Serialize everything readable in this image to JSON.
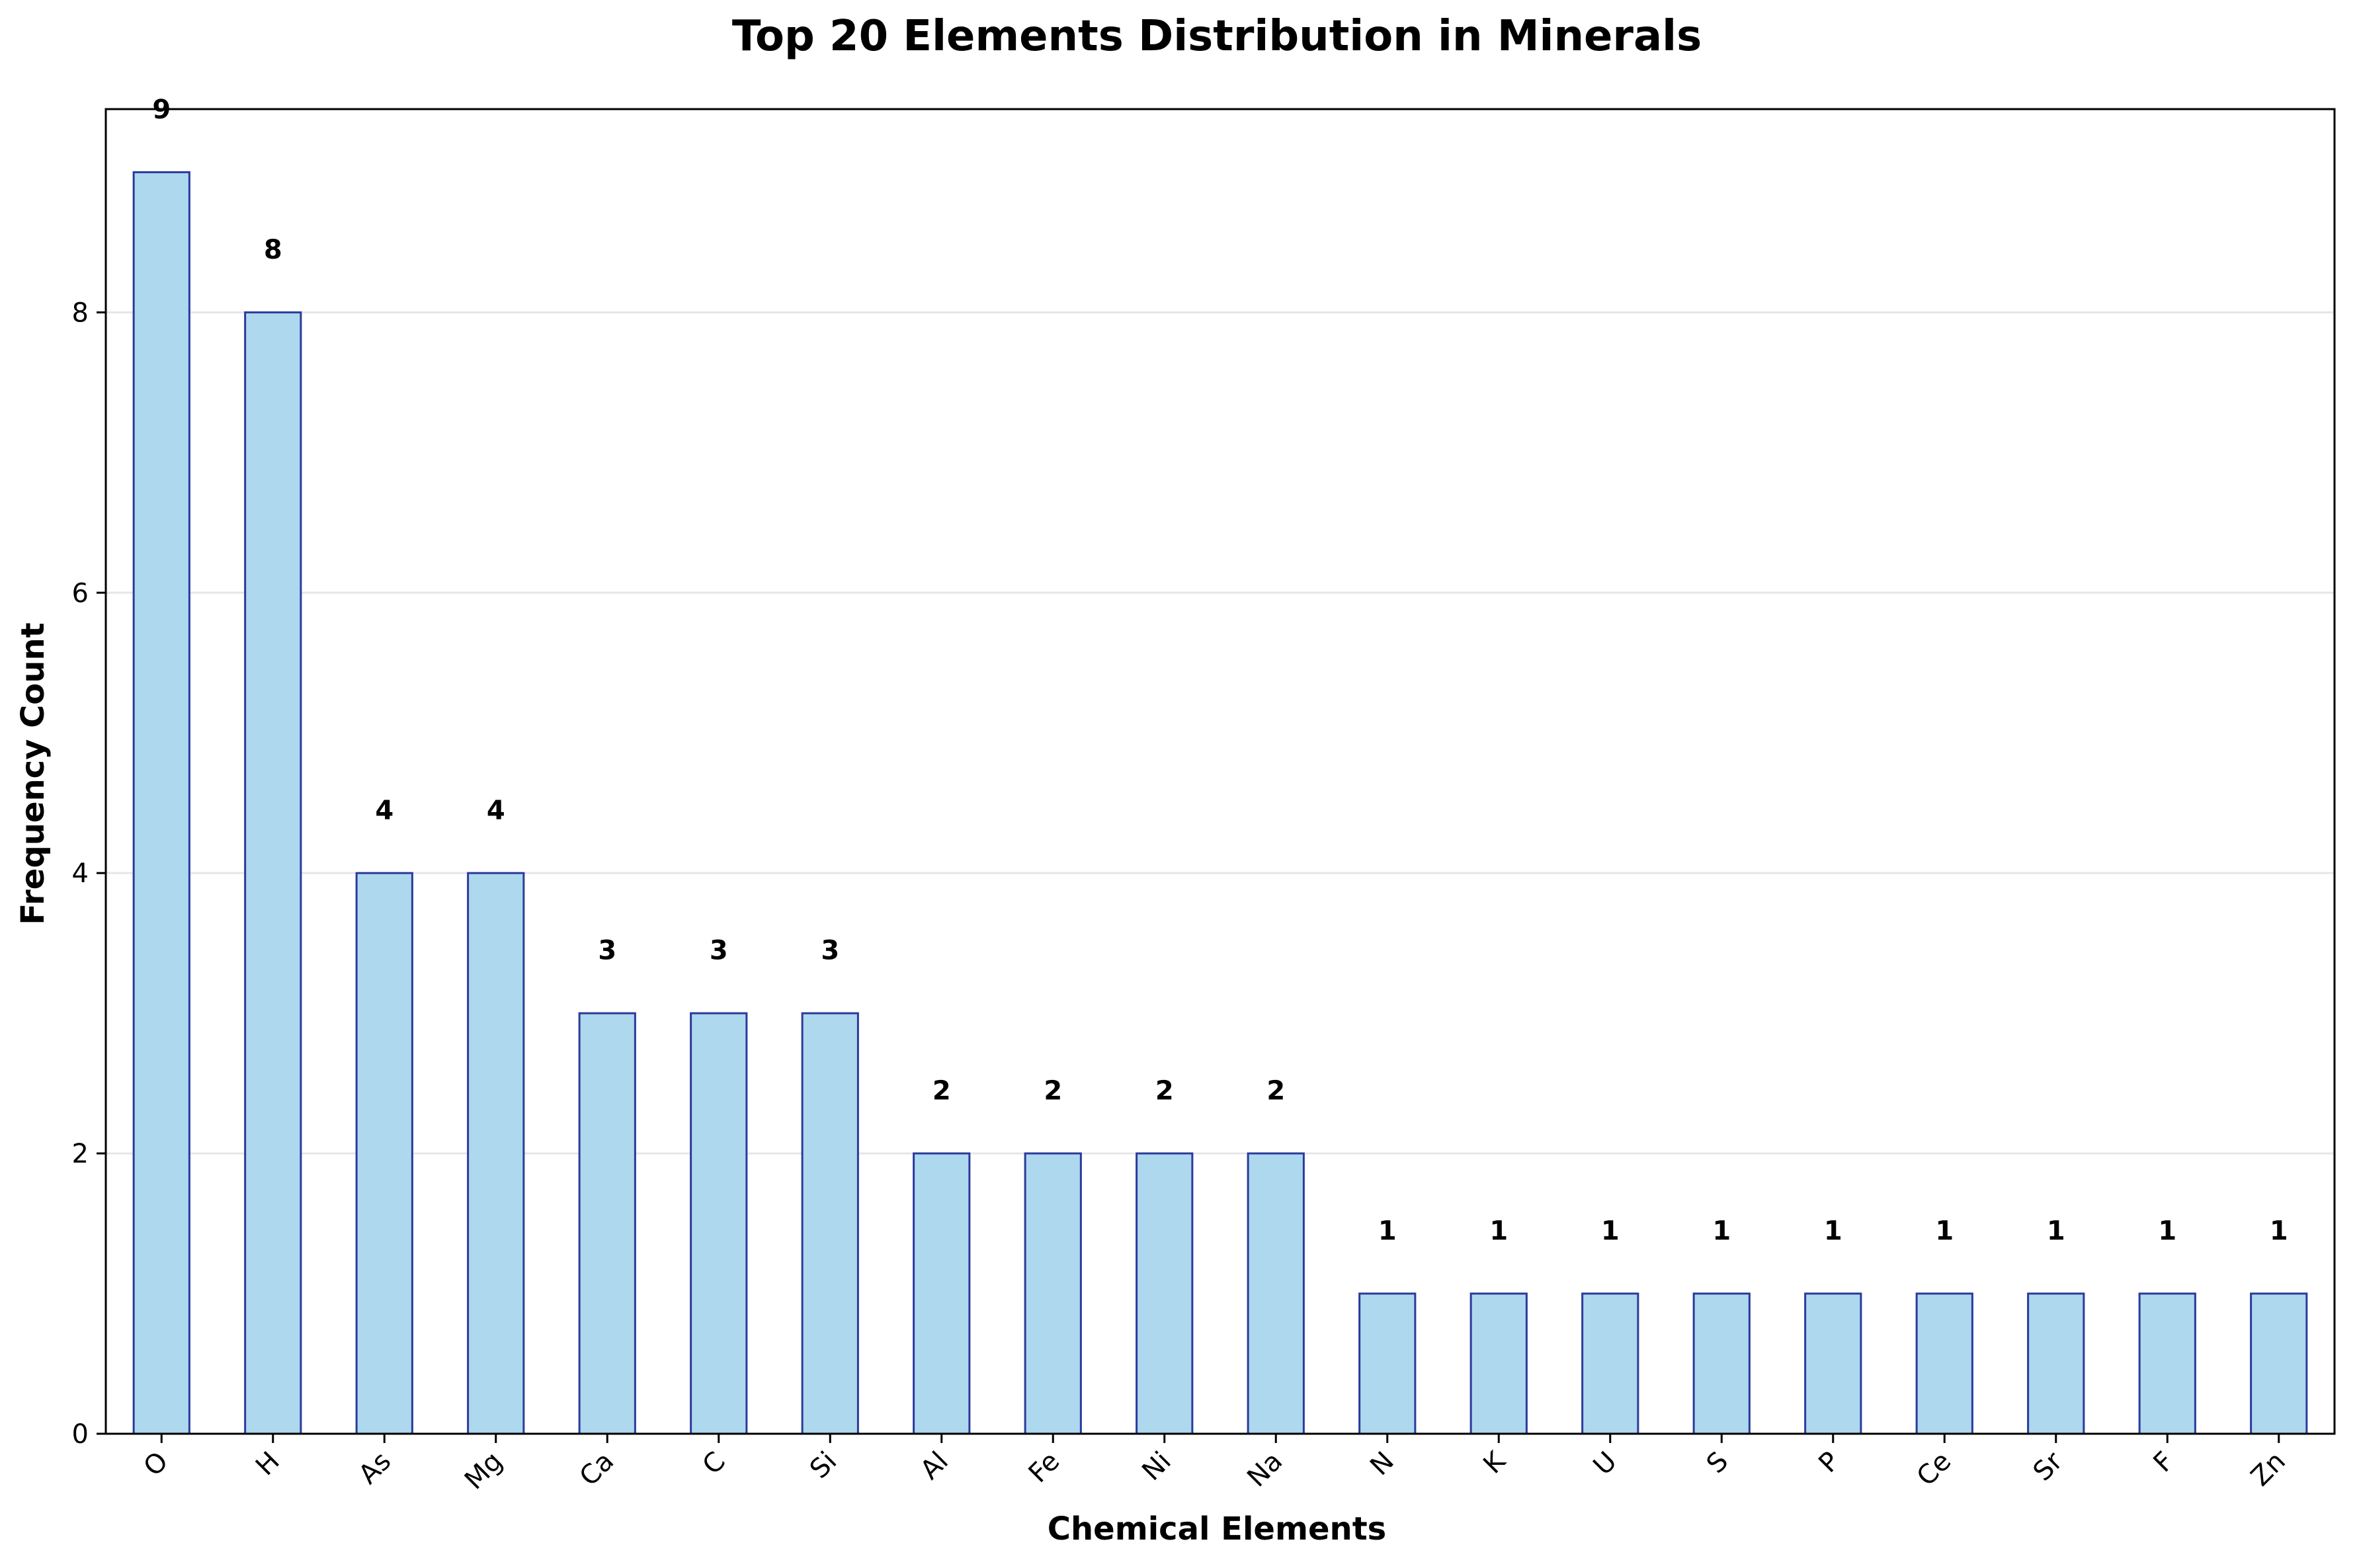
{
  "chart_data": {
    "type": "bar",
    "title": "Top 20 Elements Distribution in Minerals",
    "xlabel": "Chemical Elements",
    "ylabel": "Frequency Count",
    "categories": [
      "O",
      "H",
      "As",
      "Mg",
      "Ca",
      "C",
      "Si",
      "Al",
      "Fe",
      "Ni",
      "Na",
      "N",
      "K",
      "U",
      "S",
      "P",
      "Ce",
      "Sr",
      "F",
      "Zn"
    ],
    "values": [
      9,
      8,
      4,
      4,
      3,
      3,
      3,
      2,
      2,
      2,
      2,
      1,
      1,
      1,
      1,
      1,
      1,
      1,
      1,
      1
    ],
    "ylim": [
      0,
      9.45
    ],
    "yticks": [
      0,
      2,
      4,
      6,
      8
    ],
    "grid": "y",
    "legend": "none",
    "colors": {
      "bar_fill": "#add8ee",
      "bar_edge": "#2b3a9c",
      "grid": "#e6e6e6",
      "text": "#000000"
    }
  }
}
